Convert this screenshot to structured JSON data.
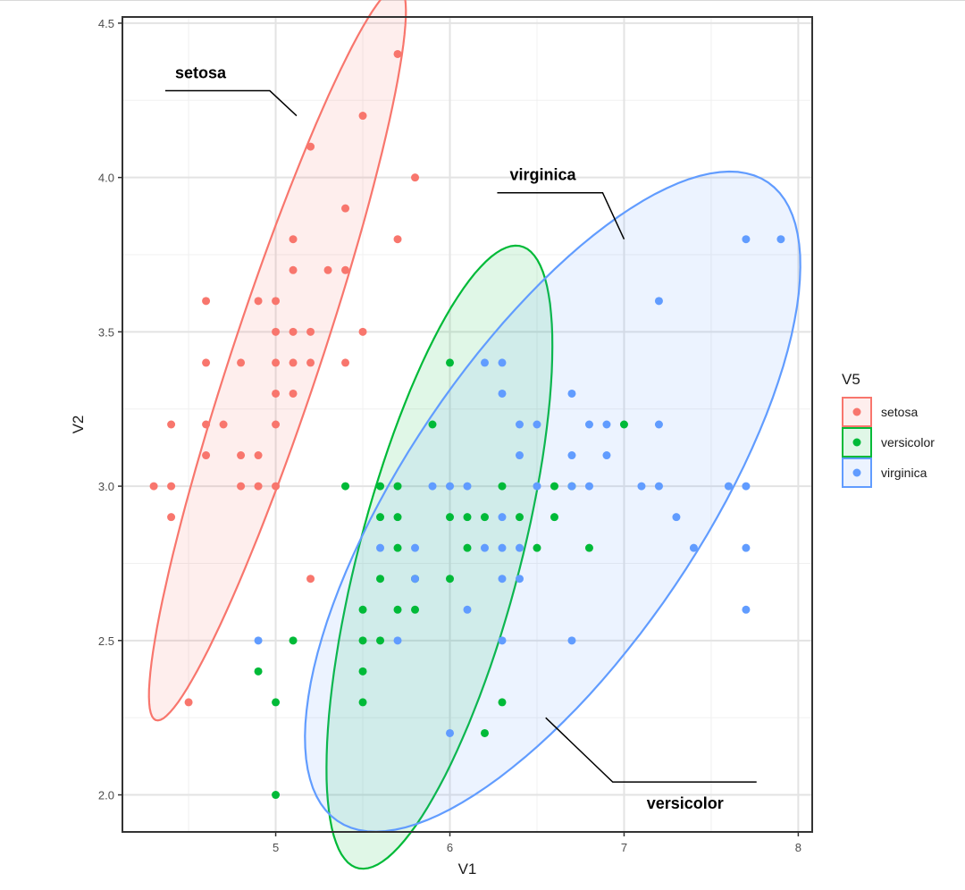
{
  "chart_data": {
    "type": "scatter",
    "title": "",
    "xlabel": "V1",
    "ylabel": "V2",
    "xlim": [
      4.12,
      8.08
    ],
    "ylim": [
      1.88,
      4.52
    ],
    "xticks": [
      "5",
      "6",
      "7",
      "8"
    ],
    "yticks": [
      "2.0",
      "2.5",
      "3.0",
      "3.5",
      "4.0",
      "4.5"
    ],
    "xtick_values": [
      5,
      6,
      7,
      8
    ],
    "ytick_values": [
      2.0,
      2.5,
      3.0,
      3.5,
      4.0,
      4.5
    ],
    "grid": true,
    "legend": {
      "title": "V5",
      "position": "right"
    },
    "series": [
      {
        "name": "setosa",
        "color": "#F8766D",
        "ellipse": {
          "center": [
            5.01,
            3.43
          ],
          "semi_axes": [
            1.38,
            0.23
          ],
          "angle_deg": 59
        },
        "annotation": {
          "label": "setosa",
          "anchor": [
            5.12,
            4.2
          ]
        },
        "points": [
          [
            4.3,
            3.0
          ],
          [
            4.4,
            2.9
          ],
          [
            4.4,
            3.0
          ],
          [
            4.4,
            3.2
          ],
          [
            4.5,
            2.3
          ],
          [
            4.6,
            3.1
          ],
          [
            4.6,
            3.2
          ],
          [
            4.6,
            3.4
          ],
          [
            4.6,
            3.6
          ],
          [
            4.7,
            3.2
          ],
          [
            4.8,
            3.0
          ],
          [
            4.8,
            3.1
          ],
          [
            4.8,
            3.4
          ],
          [
            4.9,
            3.0
          ],
          [
            4.9,
            3.1
          ],
          [
            4.9,
            3.6
          ],
          [
            5.0,
            3.0
          ],
          [
            5.0,
            3.2
          ],
          [
            5.0,
            3.3
          ],
          [
            5.0,
            3.4
          ],
          [
            5.0,
            3.5
          ],
          [
            5.0,
            3.6
          ],
          [
            5.1,
            3.3
          ],
          [
            5.1,
            3.4
          ],
          [
            5.1,
            3.5
          ],
          [
            5.1,
            3.7
          ],
          [
            5.1,
            3.8
          ],
          [
            5.2,
            3.4
          ],
          [
            5.2,
            3.5
          ],
          [
            5.2,
            4.1
          ],
          [
            5.3,
            3.7
          ],
          [
            5.4,
            3.4
          ],
          [
            5.4,
            3.7
          ],
          [
            5.4,
            3.9
          ],
          [
            5.5,
            3.5
          ],
          [
            5.5,
            4.2
          ],
          [
            5.7,
            3.8
          ],
          [
            5.7,
            4.4
          ],
          [
            5.8,
            4.0
          ],
          [
            5.2,
            2.7
          ]
        ]
      },
      {
        "name": "versicolor",
        "color": "#00BA38",
        "ellipse": {
          "center": [
            5.94,
            2.77
          ],
          "semi_axes": [
            1.12,
            0.43
          ],
          "angle_deg": 62
        },
        "annotation": {
          "label": "versicolor",
          "anchor": [
            6.55,
            2.25
          ]
        },
        "points": [
          [
            4.9,
            2.4
          ],
          [
            5.0,
            2.0
          ],
          [
            5.0,
            2.3
          ],
          [
            5.1,
            2.5
          ],
          [
            5.4,
            3.0
          ],
          [
            5.5,
            2.3
          ],
          [
            5.5,
            2.4
          ],
          [
            5.5,
            2.5
          ],
          [
            5.5,
            2.6
          ],
          [
            5.6,
            2.5
          ],
          [
            5.6,
            2.7
          ],
          [
            5.6,
            2.9
          ],
          [
            5.6,
            3.0
          ],
          [
            5.7,
            2.6
          ],
          [
            5.7,
            2.8
          ],
          [
            5.7,
            2.9
          ],
          [
            5.7,
            3.0
          ],
          [
            5.8,
            2.6
          ],
          [
            5.8,
            2.7
          ],
          [
            5.9,
            3.2
          ],
          [
            6.0,
            2.7
          ],
          [
            6.0,
            2.9
          ],
          [
            6.0,
            3.4
          ],
          [
            6.1,
            2.8
          ],
          [
            6.1,
            2.9
          ],
          [
            6.2,
            2.2
          ],
          [
            6.2,
            2.9
          ],
          [
            6.3,
            2.3
          ],
          [
            6.3,
            3.0
          ],
          [
            6.4,
            2.9
          ],
          [
            6.5,
            2.8
          ],
          [
            6.6,
            2.9
          ],
          [
            6.6,
            3.0
          ],
          [
            6.7,
            3.0
          ],
          [
            6.8,
            2.8
          ],
          [
            7.0,
            3.2
          ]
        ]
      },
      {
        "name": "virginica",
        "color": "#619CFF",
        "ellipse": {
          "center": [
            6.59,
            2.95
          ],
          "semi_axes": [
            1.66,
            0.64
          ],
          "angle_deg": 34
        },
        "annotation": {
          "label": "virginica",
          "anchor": [
            7.0,
            3.8
          ]
        },
        "points": [
          [
            4.9,
            2.5
          ],
          [
            5.6,
            2.8
          ],
          [
            5.7,
            2.5
          ],
          [
            5.8,
            2.7
          ],
          [
            5.8,
            2.8
          ],
          [
            5.9,
            3.0
          ],
          [
            6.0,
            2.2
          ],
          [
            6.0,
            3.0
          ],
          [
            6.1,
            2.6
          ],
          [
            6.1,
            3.0
          ],
          [
            6.2,
            2.8
          ],
          [
            6.2,
            3.4
          ],
          [
            6.3,
            2.5
          ],
          [
            6.3,
            2.7
          ],
          [
            6.3,
            2.8
          ],
          [
            6.3,
            2.9
          ],
          [
            6.3,
            3.3
          ],
          [
            6.3,
            3.4
          ],
          [
            6.4,
            2.7
          ],
          [
            6.4,
            2.8
          ],
          [
            6.4,
            3.1
          ],
          [
            6.4,
            3.2
          ],
          [
            6.5,
            3.0
          ],
          [
            6.5,
            3.2
          ],
          [
            6.7,
            2.5
          ],
          [
            6.7,
            3.0
          ],
          [
            6.7,
            3.1
          ],
          [
            6.7,
            3.3
          ],
          [
            6.8,
            3.0
          ],
          [
            6.8,
            3.2
          ],
          [
            6.9,
            3.1
          ],
          [
            6.9,
            3.2
          ],
          [
            7.1,
            3.0
          ],
          [
            7.2,
            3.0
          ],
          [
            7.2,
            3.2
          ],
          [
            7.2,
            3.6
          ],
          [
            7.3,
            2.9
          ],
          [
            7.4,
            2.8
          ],
          [
            7.6,
            3.0
          ],
          [
            7.7,
            2.6
          ],
          [
            7.7,
            2.8
          ],
          [
            7.7,
            3.0
          ],
          [
            7.7,
            3.8
          ],
          [
            7.9,
            3.8
          ]
        ]
      }
    ]
  }
}
